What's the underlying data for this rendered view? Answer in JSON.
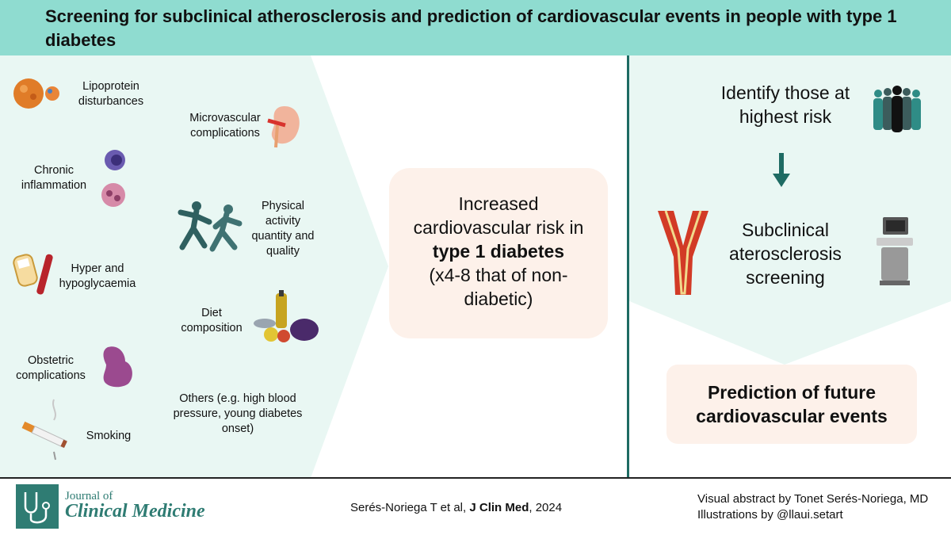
{
  "title": "Screening for subclinical atherosclerosis and prediction of cardiovascular events in people with type 1 diabetes",
  "risk_factors": {
    "lipoprotein": "Lipoprotein disturbances",
    "microvascular": "Microvascular complications",
    "inflammation": "Chronic inflammation",
    "physical_activity": "Physical activity quantity and quality",
    "glycaemia": "Hyper and hypoglycaemia",
    "diet": "Diet composition",
    "obstetric": "Obstetric complications",
    "others": "Others (e.g. high blood pressure, young diabetes onset)",
    "smoking": "Smoking"
  },
  "center": {
    "line1": "Increased cardiovascular risk in",
    "emphasis": "type 1 diabetes",
    "line2": "(x4-8 that of non-diabetic)"
  },
  "right": {
    "identify": "Identify those at highest risk",
    "screening": "Subclinical aterosclerosis screening",
    "prediction": "Prediction of future cardiovascular events"
  },
  "footer": {
    "journal_of": "Journal of",
    "journal_name": "Clinical Medicine",
    "citation_pre": "Serés-Noriega T et al, ",
    "citation_journal": "J Clin Med",
    "citation_post": ", 2024",
    "credit1": "Visual abstract by Tonet Serés-Noriega, MD",
    "credit2": "Illustrations by @llaui.setart"
  },
  "colors": {
    "header": "#8fdcd0",
    "left_panel": "#e9f7f3",
    "divider": "#1e6b63",
    "box": "#fdf1ea",
    "accent": "#2f7c73"
  }
}
